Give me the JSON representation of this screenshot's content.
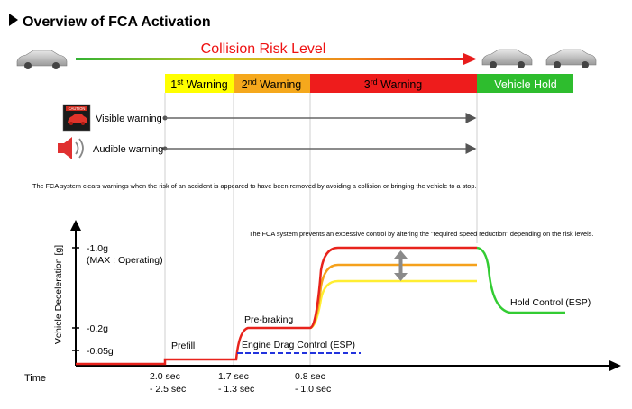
{
  "title": "Overview of FCA Activation",
  "risk_label": "Collision Risk Level",
  "warnings": {
    "w1_num": "1",
    "w1_sup": "st",
    "w1_rest": " Warning",
    "w2_num": "2",
    "w2_sup": "nd",
    "w2_rest": " Warning",
    "w3_num": "3",
    "w3_sup": "rd",
    "w3_rest": " Warning",
    "hold": "Vehicle Hold"
  },
  "indicators": {
    "caution_badge": "CAUTION",
    "visible": "Visible warning",
    "audible": "Audible warning"
  },
  "note_clear": "The FCA system clears warnings when the risk of an accident is appeared to have been removed by avoiding a collision or bringing the vehicle to a stop.",
  "note_prevent": "The FCA system prevents an excessive control by altering the \"required speed reduction\" depending on the risk levels.",
  "graph": {
    "ylabel": "Vchicle Deceleration [g]",
    "xlabel": "Time",
    "y_ticks": {
      "t1": "-1.0g",
      "t1_sub": "(MAX : Operating)",
      "t2": "-0.2g",
      "t3": "-0.05g"
    },
    "phases": {
      "prefill": "Prefill",
      "prebraking": "Pre-braking",
      "engine_drag": "Engine Drag Control (ESP)",
      "hold_control": "Hold Control (ESP)"
    },
    "x_ticks": [
      {
        "line1": "2.0 sec",
        "line2": "- 2.5 sec"
      },
      {
        "line1": "1.7 sec",
        "line2": "- 1.3 sec"
      },
      {
        "line1": "0.8 sec",
        "line2": "- 1.0 sec"
      }
    ]
  },
  "colors": {
    "warn1": "#ffff00",
    "warn2": "#f5a81c",
    "warn3": "#ee1c1c",
    "hold": "#2ebd2e",
    "risk_text": "#ee1111",
    "curve_red": "#e8231c",
    "curve_orange": "#f5a11c",
    "curve_yellow": "#ffee33",
    "curve_green": "#33cc33",
    "dash_blue": "#2233dd"
  }
}
